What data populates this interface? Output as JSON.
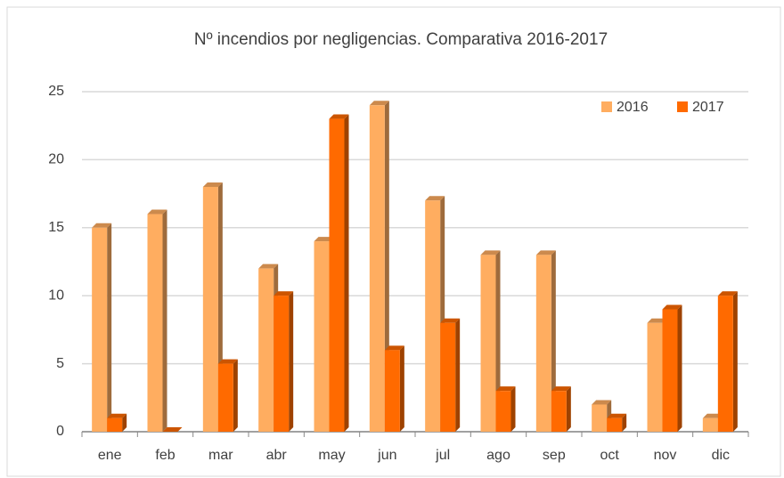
{
  "chart_data": {
    "type": "bar",
    "title": "Nº incendios por negligencias. Comparativa 2016-2017",
    "categories": [
      "ene",
      "feb",
      "mar",
      "abr",
      "may",
      "jun",
      "jul",
      "ago",
      "sep",
      "oct",
      "nov",
      "dic"
    ],
    "series": [
      {
        "name": "2016",
        "color": "#ffad60",
        "values": [
          15,
          16,
          18,
          12,
          14,
          24,
          17,
          13,
          13,
          2,
          8,
          1
        ]
      },
      {
        "name": "2017",
        "color": "#ff6a00",
        "values": [
          1,
          0,
          5,
          10,
          23,
          6,
          8,
          3,
          3,
          1,
          9,
          10
        ]
      }
    ],
    "ylim": [
      0,
      25
    ],
    "yticks": [
      0,
      5,
      10,
      15,
      20,
      25
    ],
    "grid": true,
    "legend": "top-right"
  }
}
